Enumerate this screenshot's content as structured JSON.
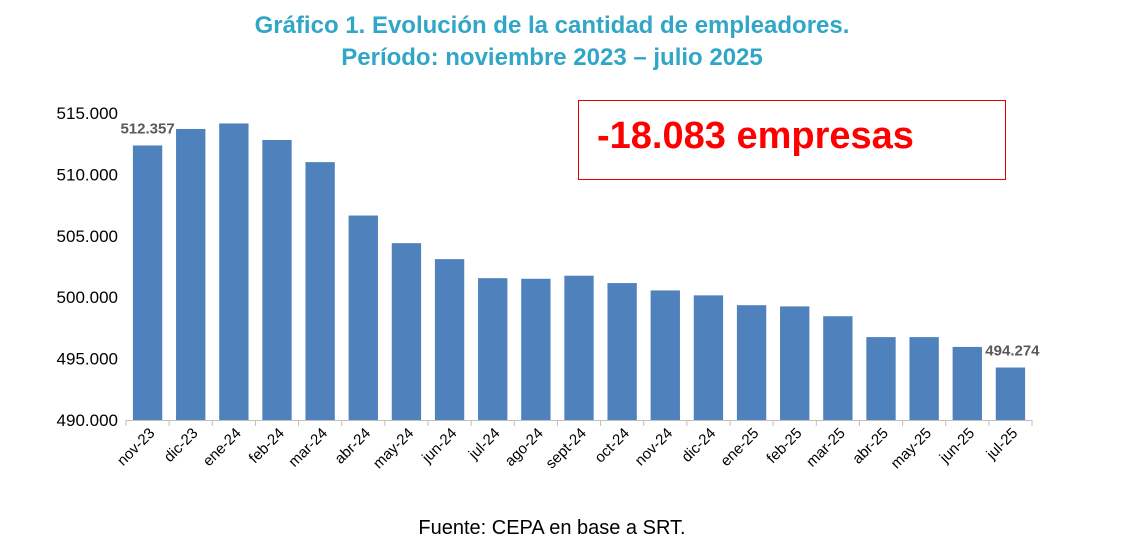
{
  "chart_data": {
    "type": "bar",
    "title": "Gráfico 1. Evolución de la cantidad de empleadores.",
    "subtitle": "Período: noviembre 2023 – julio 2025",
    "categories": [
      "nov-23",
      "dic-23",
      "ene-24",
      "feb-24",
      "mar-24",
      "abr-24",
      "may-24",
      "jun-24",
      "jul-24",
      "ago-24",
      "sept-24",
      "oct-24",
      "nov-24",
      "dic-24",
      "ene-25",
      "feb-25",
      "mar-25",
      "abr-25",
      "may-25",
      "jun-25",
      "jul-25"
    ],
    "values": [
      512357,
      513700,
      514150,
      512800,
      511000,
      506650,
      504400,
      503100,
      501550,
      501500,
      501750,
      501150,
      500550,
      500150,
      499350,
      499250,
      498450,
      496750,
      496750,
      495950,
      494274
    ],
    "ylim": [
      490000,
      515000
    ],
    "yticks": [
      "490.000",
      "495.000",
      "500.000",
      "505.000",
      "510.000",
      "515.000"
    ],
    "data_labels": [
      {
        "index": 0,
        "text": "512.357"
      },
      {
        "index": 20,
        "text": "494.274"
      }
    ],
    "bar_color": "#4f81bd",
    "grid": false,
    "legend": "none"
  },
  "annotation": {
    "text": "-18.083 empresas",
    "color": "#ff0000"
  },
  "source": "Fuente: CEPA en base a SRT."
}
